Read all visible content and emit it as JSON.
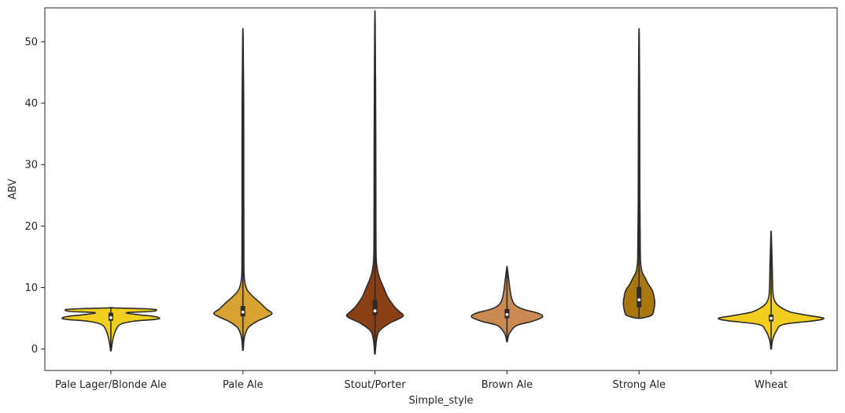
{
  "chart_data": {
    "type": "violin",
    "xlabel": "Simple_style",
    "ylabel": "ABV",
    "ylim": [
      -3.5,
      55.5
    ],
    "yticks": [
      0,
      10,
      20,
      30,
      40,
      50
    ],
    "grid": false,
    "categories": [
      "Pale Lager/Blonde Ale",
      "Pale Ale",
      "Stout/Porter",
      "Brown Ale",
      "Strong Ale",
      "Wheat"
    ],
    "series": [
      {
        "category": "Pale Lager/Blonde Ale",
        "color": "#F2CF1D",
        "min": -0.3,
        "q1": 4.6,
        "median": 5.1,
        "q3": 5.9,
        "max": 6.7,
        "density": [
          [
            -0.3,
            0.3
          ],
          [
            1.5,
            2.5
          ],
          [
            3,
            6
          ],
          [
            4,
            12
          ],
          [
            4.5,
            28
          ],
          [
            4.8,
            55
          ],
          [
            5,
            62
          ],
          [
            5.3,
            55
          ],
          [
            5.6,
            34
          ],
          [
            5.9,
            20
          ],
          [
            6.1,
            50
          ],
          [
            6.3,
            58
          ],
          [
            6.5,
            50
          ],
          [
            6.7,
            0
          ]
        ]
      },
      {
        "category": "Pale Ale",
        "color": "#D8A332",
        "min": -0.2,
        "q1": 5.3,
        "median": 6.0,
        "q3": 7.0,
        "max": 50.8,
        "density": [
          [
            -0.2,
            0.3
          ],
          [
            2,
            2
          ],
          [
            3.5,
            7
          ],
          [
            4.5,
            18
          ],
          [
            5.2,
            30
          ],
          [
            5.8,
            37
          ],
          [
            6.5,
            30
          ],
          [
            7.5,
            22
          ],
          [
            8.5,
            13
          ],
          [
            9.5,
            6
          ],
          [
            10.5,
            3
          ],
          [
            12,
            1.5
          ],
          [
            15,
            1.2
          ],
          [
            25,
            1.1
          ],
          [
            40,
            1
          ],
          [
            50.8,
            0.3
          ]
        ]
      },
      {
        "category": "Stout/Porter",
        "color": "#8B3F15",
        "min": -0.8,
        "q1": 5.5,
        "median": 6.2,
        "q3": 8.0,
        "max": 52.8,
        "density": [
          [
            -0.8,
            0.3
          ],
          [
            1.5,
            2
          ],
          [
            3,
            6
          ],
          [
            4.3,
            20
          ],
          [
            5,
            32
          ],
          [
            5.5,
            36
          ],
          [
            6.2,
            30
          ],
          [
            7,
            24
          ],
          [
            8.5,
            16
          ],
          [
            10,
            11
          ],
          [
            11.5,
            6
          ],
          [
            13,
            3
          ],
          [
            15,
            1.5
          ],
          [
            20,
            1.2
          ],
          [
            35,
            1
          ],
          [
            52.8,
            0.3
          ]
        ]
      },
      {
        "category": "Brown Ale",
        "color": "#CC8A53",
        "min": 1.2,
        "q1": 5.0,
        "median": 5.6,
        "q3": 6.5,
        "max": 13.2,
        "density": [
          [
            1.2,
            0.3
          ],
          [
            2.5,
            3
          ],
          [
            3.8,
            12
          ],
          [
            4.5,
            32
          ],
          [
            5.2,
            45
          ],
          [
            5.8,
            40
          ],
          [
            6.5,
            20
          ],
          [
            7.2,
            10
          ],
          [
            8.2,
            6
          ],
          [
            9.5,
            4
          ],
          [
            11,
            2.5
          ],
          [
            13.2,
            0.3
          ]
        ]
      },
      {
        "category": "Strong Ale",
        "color": "#A8770F",
        "min": 5.0,
        "q1": 6.8,
        "median": 8.0,
        "q3": 10.1,
        "max": 50.8,
        "density": [
          [
            5,
            3
          ],
          [
            5.5,
            16
          ],
          [
            6.5,
            19
          ],
          [
            7.5,
            20
          ],
          [
            8.5,
            19
          ],
          [
            9.5,
            17
          ],
          [
            10.5,
            12
          ],
          [
            11.5,
            8
          ],
          [
            12.5,
            4
          ],
          [
            14,
            2
          ],
          [
            17,
            1.5
          ],
          [
            25,
            1
          ],
          [
            40,
            0.8
          ],
          [
            50.8,
            0.3
          ]
        ]
      },
      {
        "category": "Wheat",
        "color": "#F2CF1D",
        "min": 0,
        "q1": 4.5,
        "median": 5.0,
        "q3": 5.6,
        "max": 18.5,
        "density": [
          [
            0,
            0.3
          ],
          [
            1.5,
            2
          ],
          [
            3,
            7
          ],
          [
            4,
            16
          ],
          [
            4.6,
            55
          ],
          [
            5,
            67
          ],
          [
            5.4,
            50
          ],
          [
            6,
            25
          ],
          [
            6.8,
            12
          ],
          [
            7.5,
            6
          ],
          [
            8.5,
            3
          ],
          [
            10,
            2
          ],
          [
            13,
            1.5
          ],
          [
            18.5,
            0.3
          ]
        ]
      }
    ]
  }
}
